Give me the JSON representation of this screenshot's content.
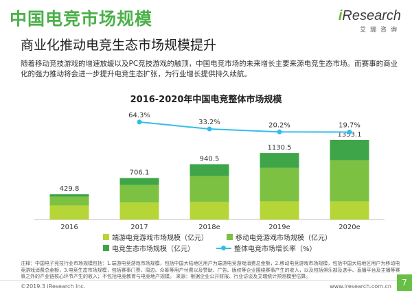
{
  "header": {
    "title": "中国电竞市场规模",
    "subtitle": "商业化推动电竞生态市场规模提升",
    "logo_text_i": "i",
    "logo_text_rest": "Research",
    "logo_sub": "艾瑞咨询"
  },
  "intro": "随着移动竞技游戏的增速放缓以及PC竞技游戏的触顶，中国电竞市场的未来增长主要来源电竞生态市场。而赛事的商业化的强力推动将会进一步提升电竞生态扩张，为行业增长提供持久续航。",
  "chart_title": "2016-2020年中国电竞整体市场规模",
  "chart_data": {
    "type": "bar",
    "stacked": true,
    "title": "2016-2020年中国电竞整体市场规模",
    "categories": [
      "2016",
      "2017",
      "2018e",
      "2019e",
      "2020e"
    ],
    "series": [
      {
        "name": "端游电竞游戏市场规模（亿元）",
        "color": "#b6d637",
        "values": [
          240,
          290,
          300,
          310,
          310
        ]
      },
      {
        "name": "移动电竞游戏市场规模（亿元）",
        "color": "#7dc142",
        "values": [
          150,
          300,
          440,
          570,
          700
        ]
      },
      {
        "name": "电竞生态市场规模（亿元）",
        "color": "#3ea548",
        "values": [
          39.8,
          116.1,
          200.5,
          250.5,
          343.1
        ]
      }
    ],
    "totals": [
      "429.8",
      "706.1",
      "940.5",
      "1130.5",
      "1353.1"
    ],
    "growth_series": {
      "name": "整体电竞市场增长率（%）",
      "color": "#33bde8",
      "values": [
        null,
        64.3,
        33.2,
        20.2,
        19.7
      ],
      "labels": [
        "",
        "64.3%",
        "33.2%",
        "20.2%",
        "19.7%"
      ]
    },
    "ylim": [
      0,
      1400
    ],
    "legend": "bottom",
    "grid": false
  },
  "notes": "注释：中国电子竞技行业市场规模包括：1.端游电竞游戏市场规模，包括中国大陆地区用户为端游电竞游戏消费总金额，2.移动电竞游戏市场规模，包括中国大陆地区用户为移动电竞游戏消费总金额，3.电竞生态市场规模，包括赛事门票、周边、众筹等用户付费以及赞助、广告、版权等企业围绕赛事产生的收入，以及包括俱乐部及选手、直播平台及主播等赛事之外的产业链核心环节产生的收入；不包括电竞教育与电竞地产规模。\n来源：根据企业公开财报、行业访谈及艾瑞统计预测模型估算。",
  "footer": {
    "copyright": "©2019.3 iResearch Inc.",
    "website": "www.iresearch.com.cn",
    "page": "7"
  }
}
